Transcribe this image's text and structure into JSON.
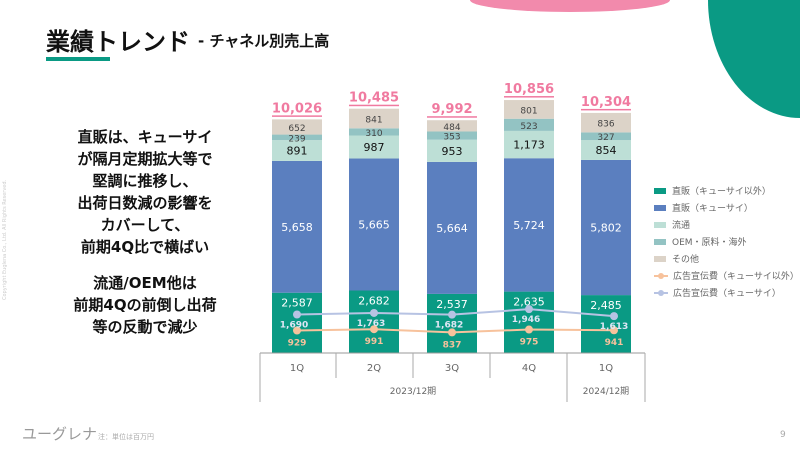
{
  "header": {
    "title": "業績トレンド",
    "subtitle": "- チャネル別売上高"
  },
  "message": {
    "lines1": [
      "直販は、キューサイ",
      "が隔月定期拡大等で",
      "堅調に推移し、",
      "出荷日数減の影響を",
      "カバーして、",
      "前期4Q比で横ばい"
    ],
    "lines2": [
      "流通/OEM他は",
      "前期4Qの前倒し出荷",
      "等の反動で減少"
    ]
  },
  "footer": {
    "logo": "ユーグレナ",
    "note": "注：単位は百万円",
    "page": "9",
    "copyright": "Copyright Euglena Co., Ltd. All Rights Reserved."
  },
  "colors": {
    "accent": "#0a9a84",
    "pink": "#f28aac",
    "total": "#f07aa0"
  },
  "chart_data": {
    "type": "bar",
    "stacked": true,
    "categories": [
      "1Q",
      "2Q",
      "3Q",
      "4Q",
      "1Q"
    ],
    "groups": [
      {
        "label": "2023/12期",
        "count": 4
      },
      {
        "label": "2024/12期",
        "count": 1
      }
    ],
    "totals": [
      "10,026",
      "10,485",
      "9,992",
      "10,856",
      "10,304"
    ],
    "series": [
      {
        "name": "直販（キューサイ以外）",
        "color": "#0a9a84",
        "values": [
          2587,
          2682,
          2537,
          2635,
          2485
        ]
      },
      {
        "name": "直販（キューサイ）",
        "color": "#5b7fbf",
        "values": [
          5658,
          5665,
          5664,
          5724,
          5802
        ]
      },
      {
        "name": "流通",
        "color": "#bddfd6",
        "values": [
          891,
          987,
          953,
          1173,
          854
        ]
      },
      {
        "name": "OEM・原料・海外",
        "color": "#93c3c3",
        "values": [
          239,
          310,
          353,
          523,
          327
        ]
      },
      {
        "name": "その他",
        "color": "#dcd3c8",
        "values": [
          652,
          841,
          484,
          801,
          836
        ]
      }
    ],
    "lines": [
      {
        "name": "広告宣伝費（キューサイ以外）",
        "color": "#f7c29c",
        "values": [
          929,
          991,
          837,
          975,
          941
        ]
      },
      {
        "name": "広告宣伝費（キューサイ）",
        "color": "#b7c3e3",
        "values": [
          1690,
          1763,
          1682,
          1946,
          1613
        ]
      }
    ],
    "legend": "right"
  }
}
